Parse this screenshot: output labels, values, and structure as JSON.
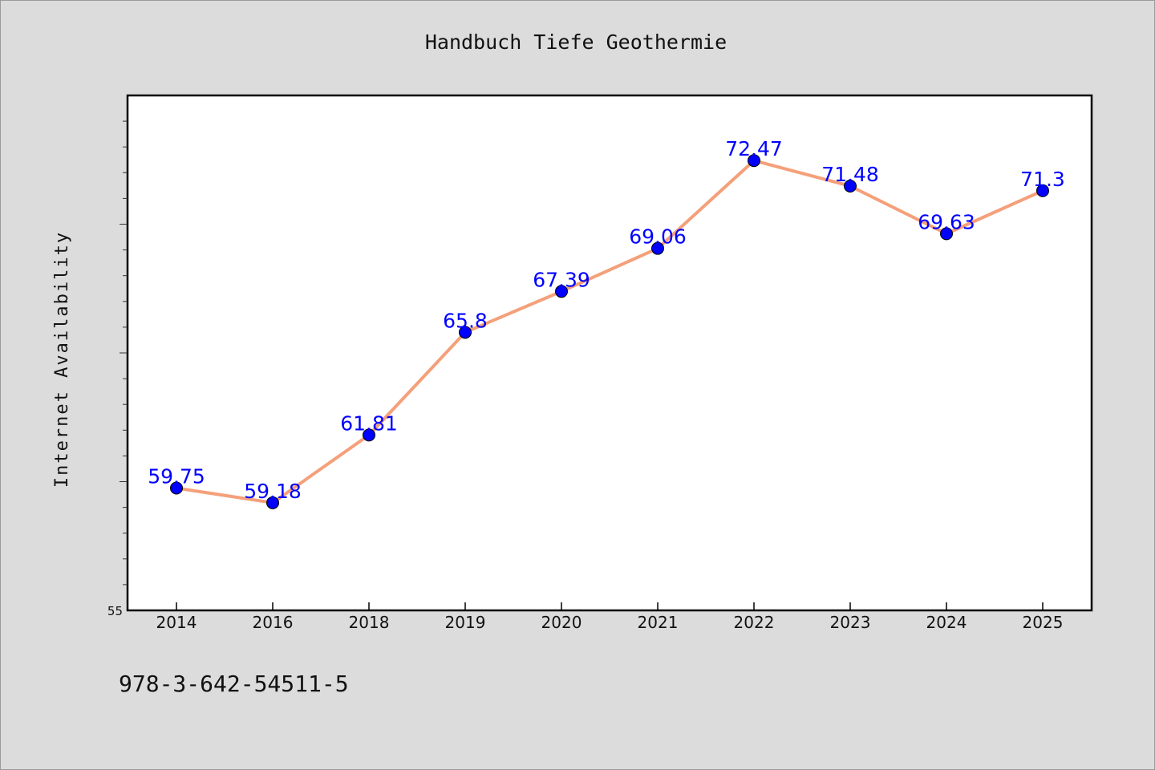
{
  "chart_data": {
    "type": "line",
    "title": "Handbuch Tiefe Geothermie",
    "xlabel": "",
    "ylabel": "Internet Availability",
    "categories": [
      "2014",
      "2016",
      "2018",
      "2019",
      "2020",
      "2021",
      "2022",
      "2023",
      "2024",
      "2025"
    ],
    "series": [
      {
        "values": [
          59.75,
          59.18,
          61.81,
          65.8,
          67.39,
          69.06,
          72.47,
          71.48,
          69.63,
          71.3
        ],
        "labels": [
          "59.75",
          "59.18",
          "61.81",
          "65.8",
          "67.39",
          "69.06",
          "72.47",
          "71.48",
          "69.63",
          "71.3"
        ],
        "line_color": "#f4a07a",
        "marker_color": "#0000ff"
      }
    ],
    "ylim": [
      55,
      75
    ],
    "ytick_labels": [
      "55"
    ],
    "grid": false,
    "legend": "none"
  },
  "footer": {
    "isbn": "978-3-642-54511-5"
  },
  "colors": {
    "background": "#dcdcdc",
    "plot_background": "#ffffff",
    "label_color": "#0000ff"
  }
}
